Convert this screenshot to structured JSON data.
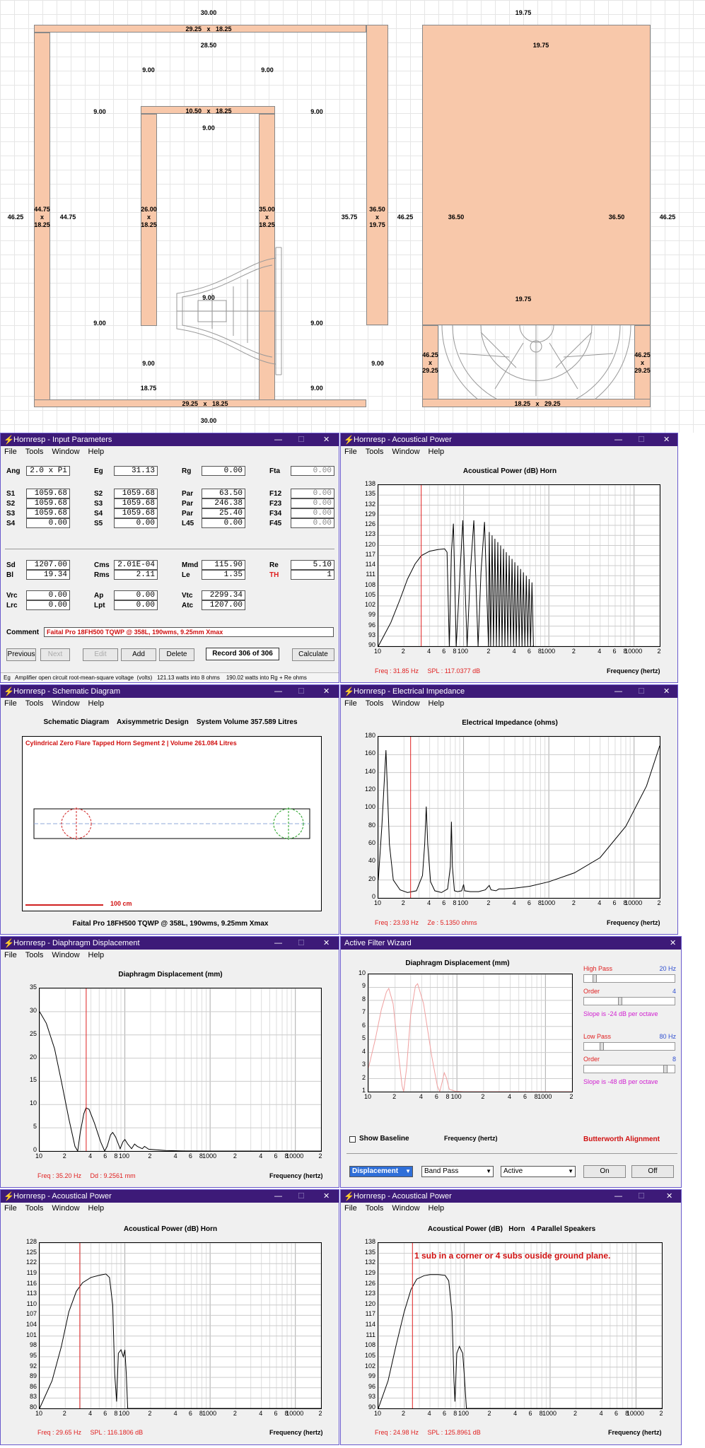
{
  "drawing": {
    "left_dims": {
      "top_width": "30.00",
      "top_board": "29.25   x   18.25",
      "inner_width": "28.50",
      "d9a": "9.00",
      "d9b": "9.00",
      "d9c": "9.00",
      "d9d": "9.00",
      "inner_top": "10.50   x   18.25",
      "inner_9": "9.00",
      "left_h": "46.25",
      "left_board": "44.75\nx\n18.25",
      "left_in": "44.75",
      "inner_left": "26.00\nx\n18.25",
      "inner_right": "35.00\nx\n18.25",
      "right_in": "35.75",
      "right_board": "36.50\nx\n19.75",
      "d9e": "9.00",
      "d9f": "9.00",
      "d9g": "9.00",
      "d9h": "9.00",
      "center_9": "9.00",
      "d1875": "18.75",
      "d9i": "9.00",
      "d9j": "9.00",
      "bottom_board": "29.25   x   18.25",
      "bottom_width": "30.00"
    },
    "right_dims": {
      "top_width": "19.75",
      "top_inner": "19.75",
      "left_h": "46.25",
      "l3650": "36.50",
      "r3650": "36.50",
      "right_h": "46.25",
      "mid": "19.75",
      "lb": "46.25\nx\n29.25",
      "rb": "46.25\nx\n29.25",
      "bottom_board": "18.25   x   29.25"
    }
  },
  "input": {
    "title": "Hornresp - Input Parameters",
    "menu": [
      "File",
      "Tools",
      "Window",
      "Help"
    ],
    "rows": [
      {
        "l1": "Ang",
        "v1": "2.0 x Pi",
        "l2": "Eg",
        "v2": "31.13",
        "l3": "Rg",
        "v3": "0.00",
        "l4": "Fta",
        "v4": "0.00"
      },
      {
        "l1": "S1",
        "v1": "1059.68",
        "l2": "S2",
        "v2": "1059.68",
        "l3": "Par",
        "v3": "63.50",
        "l4": "F12",
        "v4": "0.00"
      },
      {
        "l1": "S2",
        "v1": "1059.68",
        "l2": "S3",
        "v2": "1059.68",
        "l3": "Par",
        "v3": "246.38",
        "l4": "F23",
        "v4": "0.00"
      },
      {
        "l1": "S3",
        "v1": "1059.68",
        "l2": "S4",
        "v2": "1059.68",
        "l3": "Par",
        "v3": "25.40",
        "l4": "F34",
        "v4": "0.00"
      },
      {
        "l1": "S4",
        "v1": "0.00",
        "l2": "S5",
        "v2": "0.00",
        "l3": "L45",
        "v3": "0.00",
        "l4": "F45",
        "v4": "0.00"
      }
    ],
    "rows2": [
      {
        "l1": "Sd",
        "v1": "1207.00",
        "l2": "Cms",
        "v2": "2.01E-04",
        "l3": "Mmd",
        "v3": "115.90",
        "l4": "Re",
        "v4": "5.10"
      },
      {
        "l1": "Bl",
        "v1": "19.34",
        "l2": "Rms",
        "v2": "2.11",
        "l3": "Le",
        "v3": "1.35",
        "l4": "TH",
        "v4": "1"
      }
    ],
    "rows3": [
      {
        "l1": "Vrc",
        "v1": "0.00",
        "l2": "Ap",
        "v2": "0.00",
        "l3": "Vtc",
        "v3": "2299.34"
      },
      {
        "l1": "Lrc",
        "v1": "0.00",
        "l2": "Lpt",
        "v2": "0.00",
        "l3": "Atc",
        "v3": "1207.00"
      }
    ],
    "comment_label": "Comment",
    "comment": "Faital Pro 18FH500 TQWP @ 358L, 190wms, 9.25mm Xmax",
    "buttons": {
      "previous": "Previous",
      "next": "Next",
      "edit": "Edit",
      "add": "Add",
      "delete": "Delete",
      "record": "Record 306 of 306",
      "calculate": "Calculate"
    },
    "status": "Eg   Amplifier open circuit root-mean-square voltage  (volts)   121.13 watts into 8 ohms    190.02 watts into Rg + Re ohms"
  },
  "ap1": {
    "title": "Hornresp - Acoustical Power",
    "plot_title": "Acoustical Power (dB)   Horn",
    "freq": "Freq : 31.85 Hz     SPL : 117.0377 dB",
    "xlabel": "Frequency (hertz)"
  },
  "schem": {
    "title": "Hornresp - Schematic Diagram",
    "header": "Schematic Diagram    Axisymmetric Design    System Volume 357.589 Litres",
    "note": "Cylindrical Zero Flare Tapped Horn Segment 2 | Volume 261.084 Litres",
    "scale": "100 cm",
    "footer": "Faital Pro 18FH500 TQWP @ 358L, 190wms, 9.25mm Xmax"
  },
  "imp": {
    "title": "Hornresp - Electrical Impedance",
    "plot_title": "Electrical Impedance (ohms)",
    "freq": "Freq : 23.93 Hz     Ze : 5.1350 ohms",
    "xlabel": "Frequency (hertz)"
  },
  "disp": {
    "title": "Hornresp - Diaphragm Displacement",
    "plot_title": "Diaphragm Displacement (mm)",
    "freq": "Freq : 35.20 Hz     Dd : 9.2561 mm",
    "xlabel": "Frequency (hertz)"
  },
  "wizard": {
    "title": "Active Filter Wizard",
    "plot_title": "Diaphragm Displacement (mm)",
    "show_baseline": "Show Baseline",
    "xlabel": "Frequency (hertz)",
    "hp": "High Pass",
    "hp_val": "20 Hz",
    "order": "Order",
    "hp_order": "4",
    "hp_slope": "Slope is -24 dB per octave",
    "lp": "Low Pass",
    "lp_val": "80 Hz",
    "lp_order": "8",
    "lp_slope": "Slope is -48 dB per octave",
    "align": "Butterworth Alignment",
    "sel1": "Displacement",
    "sel2": "Band Pass",
    "sel3": "Active",
    "on": "On",
    "off": "Off"
  },
  "ap2": {
    "title": "Hornresp - Acoustical Power",
    "plot_title": "Acoustical Power (dB)   Horn",
    "freq": "Freq : 29.65 Hz     SPL : 116.1806 dB",
    "xlabel": "Frequency (hertz)"
  },
  "ap3": {
    "title": "Hornresp - Acoustical Power",
    "plot_title": "Acoustical Power (dB)   Horn   4 Parallel Speakers",
    "annotation": "1 sub in a corner or 4 subs ouside ground plane.",
    "freq": "Freq : 24.98 Hz     SPL : 125.8961 dB",
    "xlabel": "Frequency (hertz)"
  },
  "xticks_ap": [
    "10",
    "2",
    "4",
    "6",
    "8",
    "100",
    "2",
    "4",
    "6",
    "8",
    "1000",
    "2",
    "4",
    "6",
    "8",
    "10000",
    "2"
  ],
  "yticks_ap1": [
    "138",
    "135",
    "132",
    "129",
    "126",
    "123",
    "120",
    "117",
    "114",
    "111",
    "108",
    "105",
    "102",
    "99",
    "96",
    "93",
    "90"
  ],
  "yticks_imp": [
    "180",
    "160",
    "140",
    "120",
    "100",
    "80",
    "60",
    "40",
    "20",
    "0"
  ],
  "yticks_disp": [
    "35",
    "30",
    "25",
    "20",
    "15",
    "10",
    "5",
    "0"
  ],
  "yticks_wiz": [
    "10",
    "9",
    "8",
    "7",
    "6",
    "5",
    "4",
    "3",
    "2",
    "1"
  ],
  "yticks_ap2": [
    "128",
    "125",
    "122",
    "119",
    "116",
    "113",
    "110",
    "107",
    "104",
    "101",
    "98",
    "95",
    "92",
    "89",
    "86",
    "83",
    "80"
  ],
  "yticks_ap3": [
    "138",
    "135",
    "132",
    "129",
    "126",
    "123",
    "120",
    "117",
    "114",
    "111",
    "108",
    "105",
    "102",
    "99",
    "96",
    "93",
    "90"
  ],
  "xticks_wiz": [
    "10",
    "2",
    "4",
    "6",
    "8",
    "100",
    "2",
    "4",
    "6",
    "8",
    "1000",
    "2"
  ]
}
